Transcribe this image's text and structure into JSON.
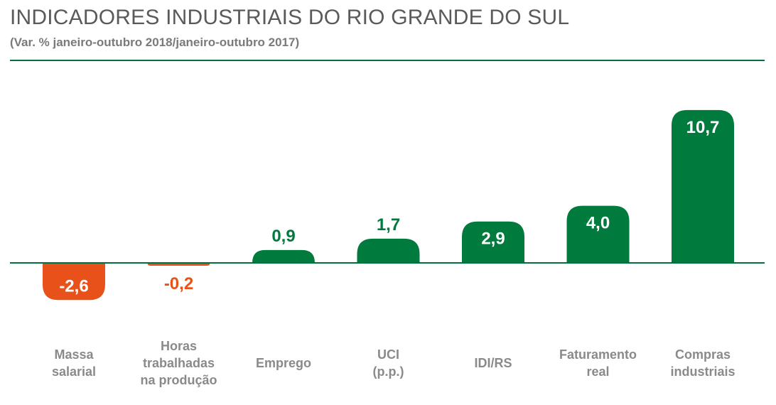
{
  "header": {
    "title": "INDICADORES INDUSTRIAIS DO RIO GRANDE DO SUL",
    "subtitle": "(Var. % janeiro-outubro 2018/janeiro-outubro 2017)"
  },
  "colors": {
    "positive": "#007a3d",
    "negative": "#e8521a",
    "axis": "#00703c",
    "label": "#8a8a8a",
    "title": "#5a5a5a"
  },
  "chart_data": {
    "type": "bar",
    "title": "INDICADORES INDUSTRIAIS DO RIO GRANDE DO SUL",
    "subtitle": "(Var. % janeiro-outubro 2018/janeiro-outubro 2017)",
    "categories": [
      [
        "Massa",
        "salarial"
      ],
      [
        "Horas",
        "trabalhadas",
        "na produção"
      ],
      [
        "Emprego"
      ],
      [
        "UCI",
        "(p.p.)"
      ],
      [
        "IDI/RS"
      ],
      [
        "Faturamento",
        "real"
      ],
      [
        "Compras",
        "industriais"
      ]
    ],
    "values": [
      -2.6,
      -0.2,
      0.9,
      1.7,
      2.9,
      4.0,
      10.7
    ],
    "value_labels": [
      "-2,6",
      "-0,2",
      "0,9",
      "1,7",
      "2,9",
      "4,0",
      "10,7"
    ],
    "xlabel": "",
    "ylabel": "",
    "grid": false
  }
}
